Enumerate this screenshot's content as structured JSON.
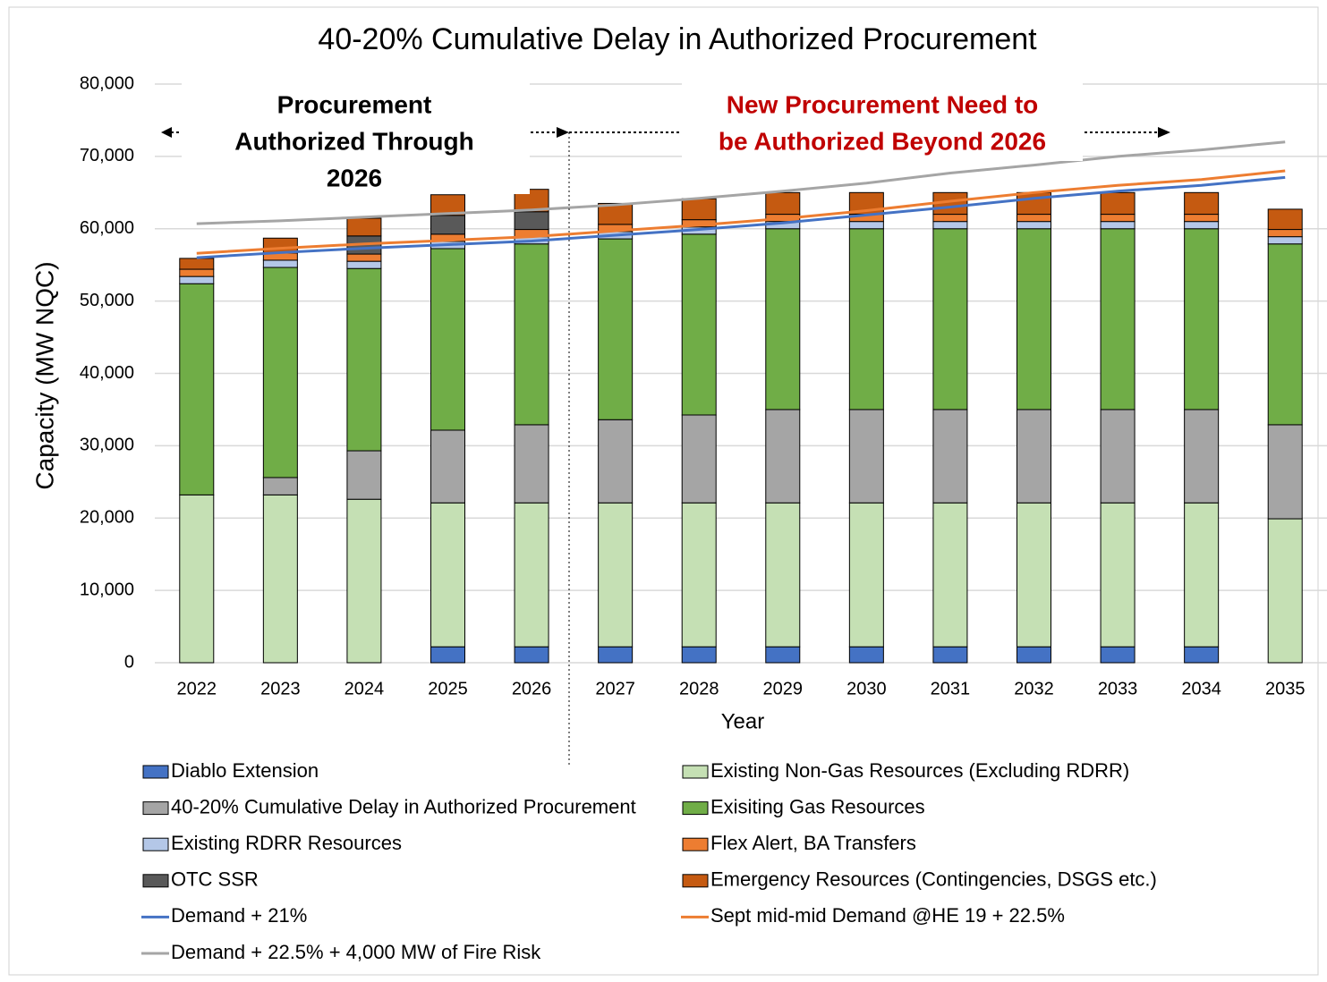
{
  "chart_data": {
    "type": "bar",
    "stacked": true,
    "title": "40-20% Cumulative Delay in Authorized Procurement",
    "x_label": "Year",
    "y_label": "Capacity (MW NQC)",
    "annotations": {
      "left": [
        "Procurement",
        "Authorized Through",
        "2026"
      ],
      "right": [
        "New Procurement Need to",
        "be Authorized Beyond 2026"
      ]
    },
    "categories": [
      "2022",
      "2023",
      "2024",
      "2025",
      "2026",
      "2027",
      "2028",
      "2029",
      "2030",
      "2031",
      "2032",
      "2033",
      "2034",
      "2035"
    ],
    "ylim": [
      0,
      80000
    ],
    "yticks": [
      0,
      {
        "value": 10000,
        "label": "10,000"
      },
      {
        "value": 20000,
        "label": "20,000"
      },
      {
        "value": 30000,
        "label": "30,000"
      },
      {
        "value": 40000,
        "label": "40,000"
      },
      {
        "value": 50000,
        "label": "50,000"
      },
      {
        "value": 60000,
        "label": "60,000"
      },
      {
        "value": 70000,
        "label": "70,000"
      },
      {
        "value": 80000,
        "label": "80,000"
      }
    ],
    "grid": true,
    "series": [
      {
        "name": "Diablo Extension",
        "color": "#4472c4",
        "values": [
          0,
          0,
          0,
          2200,
          2200,
          2200,
          2200,
          2200,
          2200,
          2200,
          2200,
          2200,
          2200,
          0
        ]
      },
      {
        "name": "Existing Non-Gas Resources (Excluding RDRR)",
        "color": "#c5e0b4",
        "values": [
          23200,
          23200,
          22600,
          19900,
          19900,
          19900,
          19900,
          19900,
          19900,
          19900,
          19900,
          19900,
          19900,
          19900
        ]
      },
      {
        "name": "40-20% Cumulative Delay in Authorized Procurement",
        "color": "#a5a5a5",
        "values": [
          0,
          2400,
          6700,
          10050,
          10800,
          11500,
          12150,
          12900,
          12900,
          12900,
          12900,
          12900,
          12900,
          13000
        ]
      },
      {
        "name": "Exisiting Gas Resources",
        "color": "#70ad47",
        "values": [
          29200,
          29050,
          25200,
          25100,
          25000,
          25000,
          25000,
          25000,
          25000,
          25000,
          25000,
          25000,
          25000,
          25000
        ]
      },
      {
        "name": "Existing RDRR Resources",
        "color": "#b4c7e7",
        "values": [
          1000,
          1000,
          1000,
          1000,
          1000,
          1000,
          1000,
          1000,
          1000,
          1000,
          1000,
          1000,
          1000,
          1000
        ]
      },
      {
        "name": "Flex Alert, BA Transfers",
        "color": "#ed7d31",
        "values": [
          1000,
          1000,
          1000,
          1000,
          1000,
          1000,
          1000,
          1000,
          1000,
          1000,
          1000,
          1000,
          1000,
          1000
        ]
      },
      {
        "name": "OTC SSR",
        "color": "#595959",
        "values": [
          0,
          0,
          2500,
          2600,
          2450,
          0,
          0,
          0,
          0,
          0,
          0,
          0,
          0,
          0
        ]
      },
      {
        "name": "Emergency Resources (Contingencies, DSGS etc.)",
        "color": "#c55a11",
        "values": [
          1500,
          2050,
          2450,
          2850,
          3100,
          2900,
          2900,
          3000,
          3000,
          3000,
          3000,
          3000,
          3000,
          2800
        ]
      },
      {
        "name": "Demand + 21%",
        "color": "#4472c4",
        "type": "line",
        "values": [
          56000,
          56700,
          57300,
          57800,
          58300,
          59100,
          59900,
          60800,
          61900,
          63000,
          64200,
          65200,
          66000,
          67100
        ]
      },
      {
        "name": "Sept mid-mid Demand @HE 19 + 22.5%",
        "color": "#ed7d31",
        "type": "line",
        "values": [
          56600,
          57300,
          57900,
          58400,
          58900,
          59700,
          60500,
          61400,
          62500,
          63800,
          65000,
          66000,
          66800,
          68000
        ]
      },
      {
        "name": "Demand + 22.5% + 4,000 MW of Fire Risk",
        "color": "#a5a5a5",
        "type": "line",
        "values": [
          60700,
          61100,
          61600,
          62100,
          62600,
          63300,
          64200,
          65200,
          66300,
          67700,
          68800,
          70000,
          70900,
          72000
        ]
      }
    ]
  }
}
